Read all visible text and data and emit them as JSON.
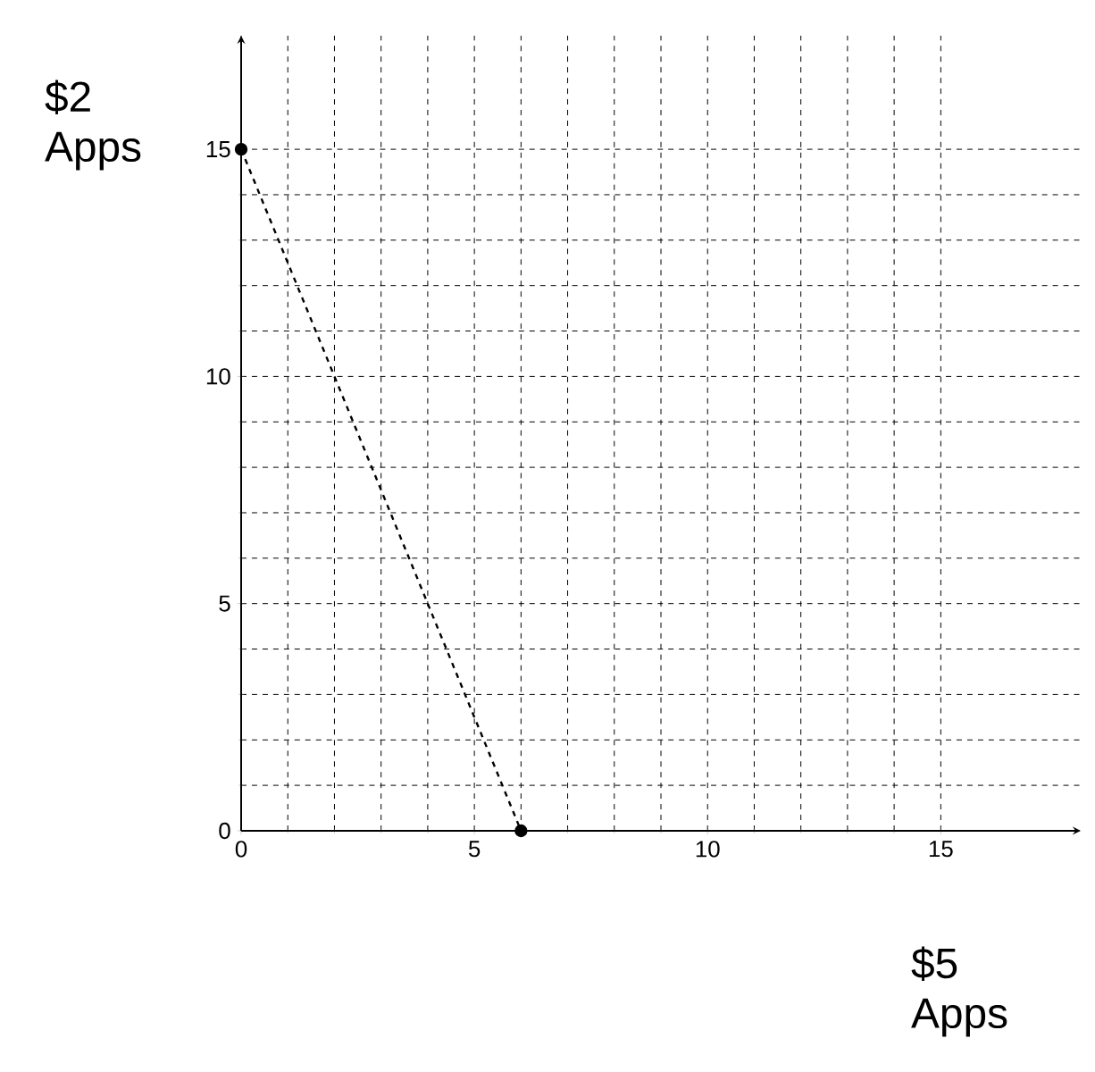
{
  "chart_data": {
    "type": "line",
    "xlabel": "$5 Apps",
    "ylabel": "$2 Apps",
    "x": [
      0,
      6
    ],
    "series": [
      {
        "color": "#000000",
        "values": [
          15,
          0
        ]
      }
    ],
    "xlim": [
      0,
      18
    ],
    "ylim": [
      0,
      17.5
    ],
    "xticks": [
      0,
      5,
      10,
      15
    ],
    "yticks": [
      0,
      5,
      10,
      15
    ],
    "grid": true,
    "marker": "circle",
    "line_style": "dashed"
  }
}
